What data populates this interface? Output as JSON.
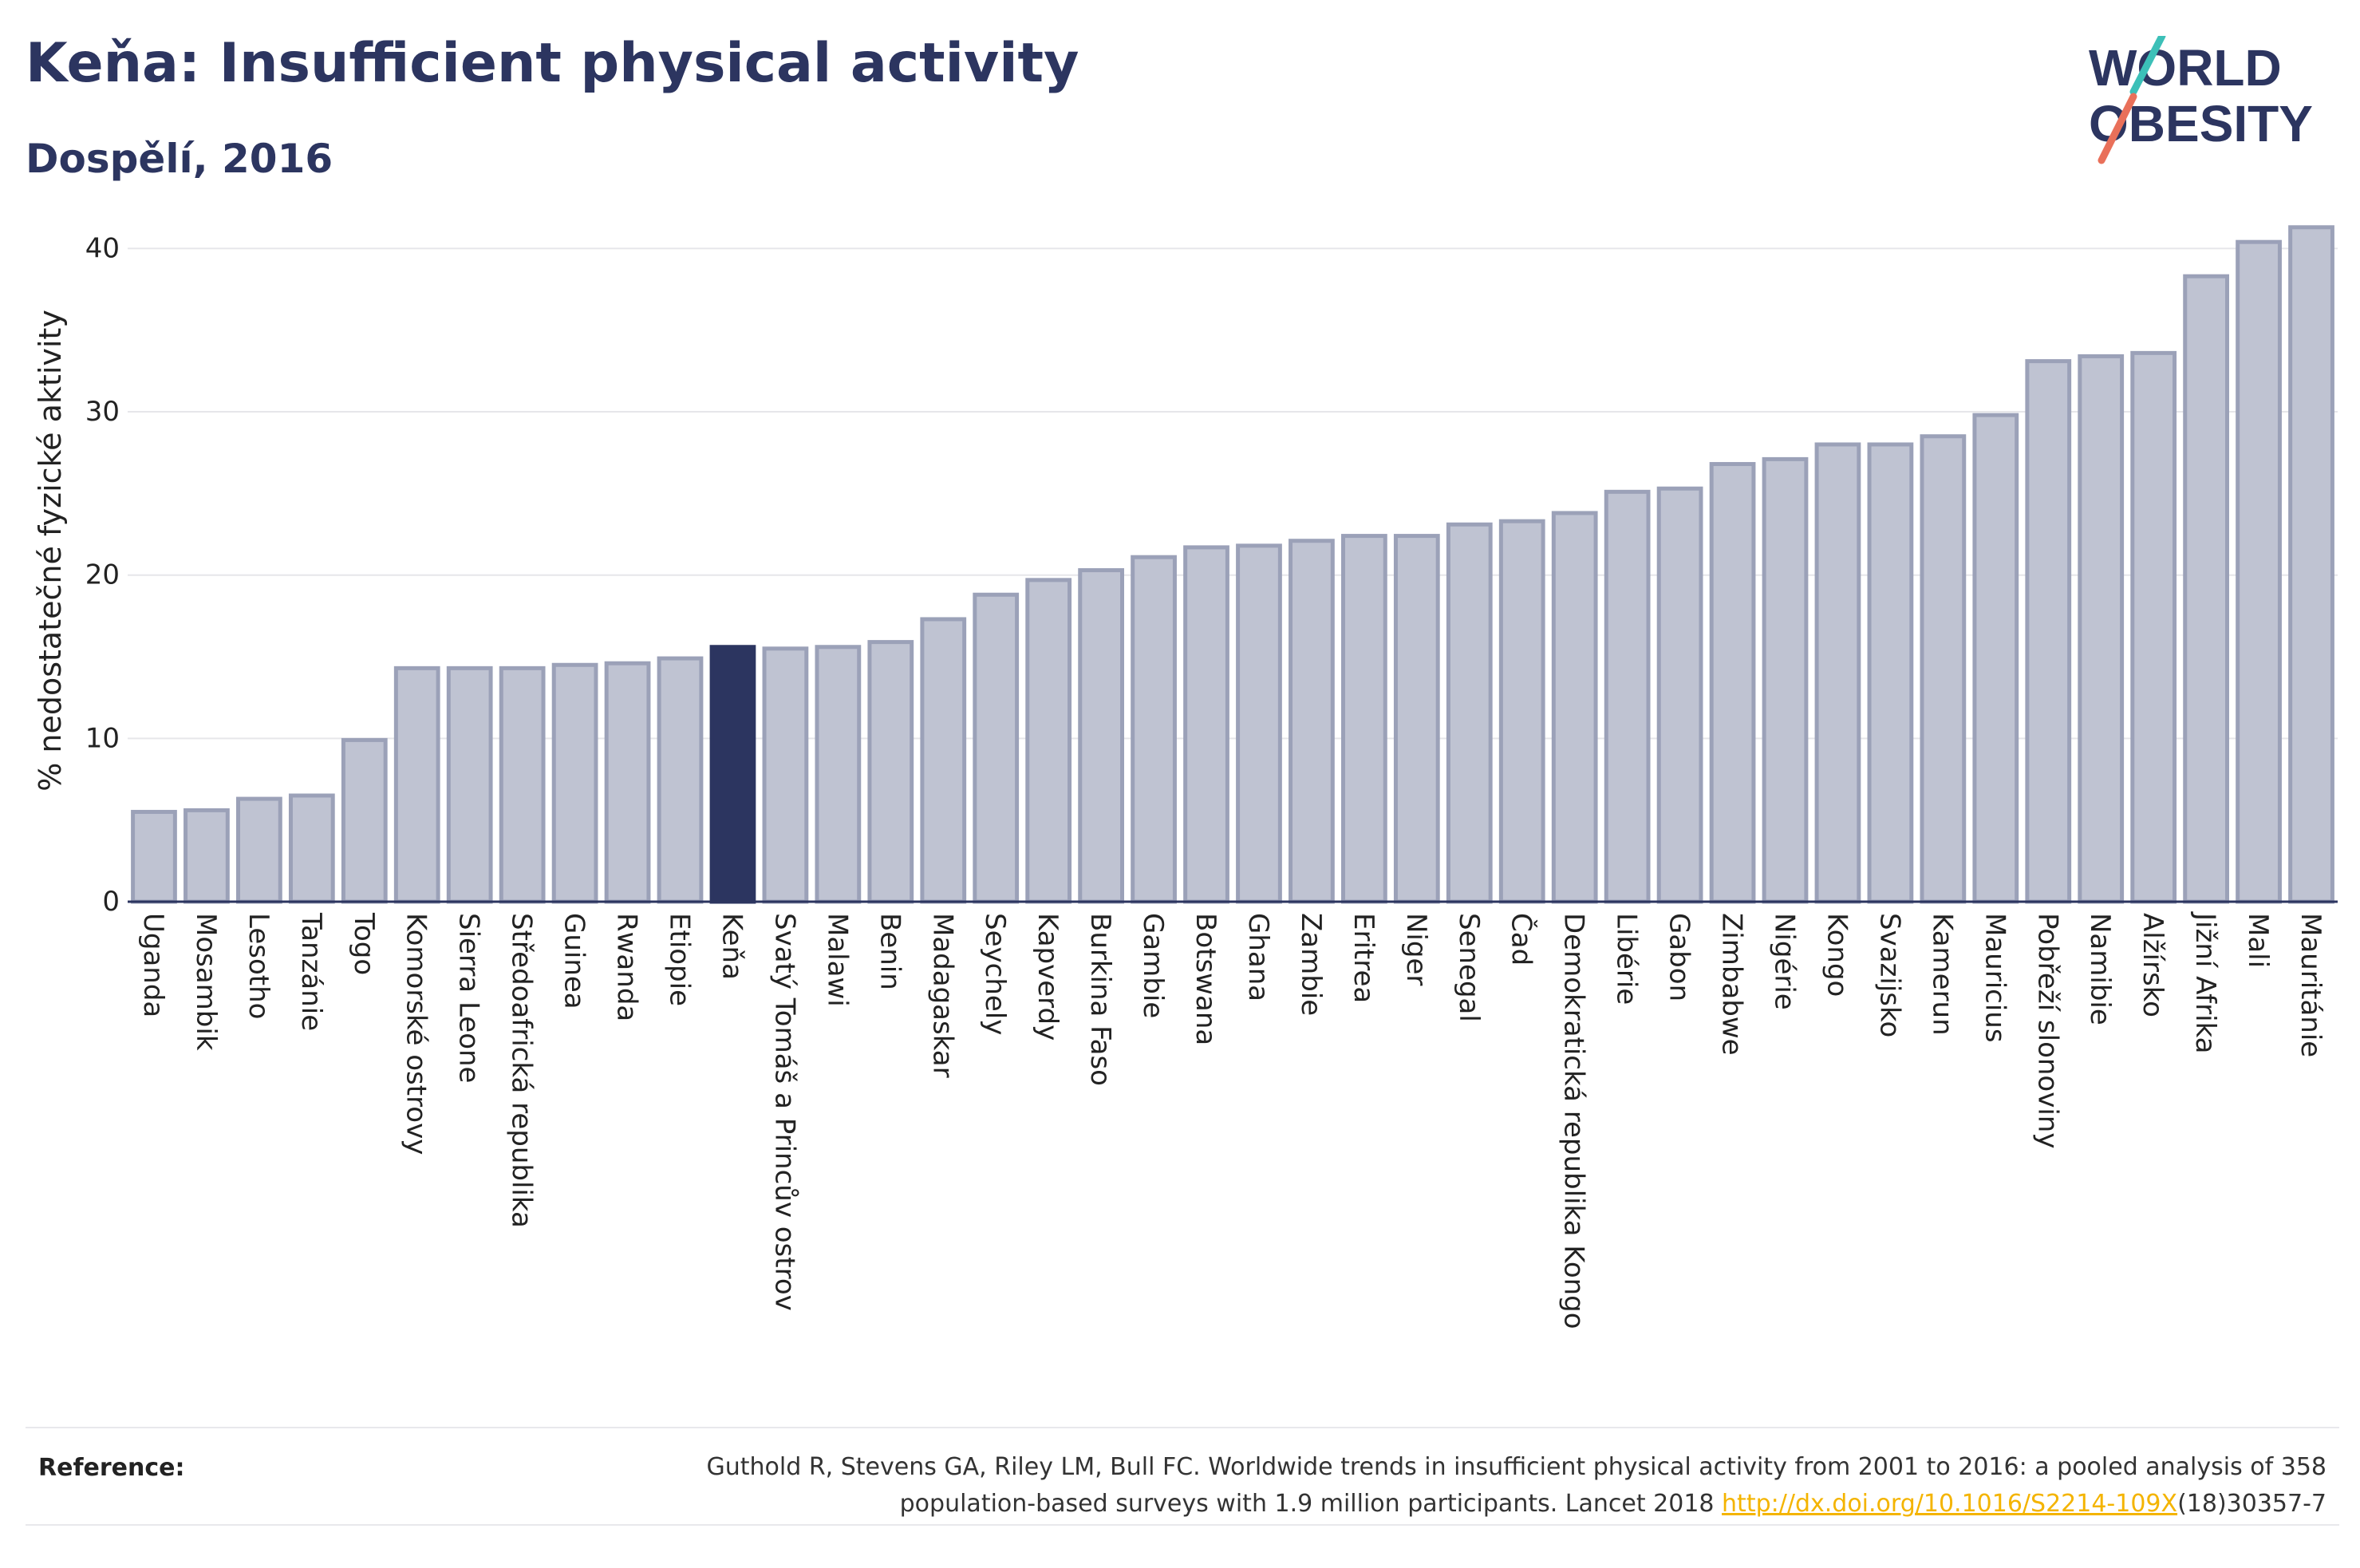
{
  "header": {
    "title": "Keňa: Insufficient physical activity",
    "subtitle": "Dospělí, 2016"
  },
  "logo": {
    "line1": "WORLD",
    "line2": "OBESITY"
  },
  "colors": {
    "bar_default": "#bfc3d2",
    "bar_default_stroke": "#9ba1b8",
    "bar_highlight": "#2c3560",
    "title": "#2c3560",
    "logo_teal": "#3cc0b8",
    "logo_coral": "#e9705a",
    "link": "#f4b400"
  },
  "chart_data": {
    "type": "bar",
    "ylabel": "% nedostatečné fyzické aktivity",
    "ylim": [
      0,
      43
    ],
    "yticks": [
      0,
      10,
      20,
      30,
      40
    ],
    "grid": true,
    "highlight": "Keňa",
    "categories": [
      "Uganda",
      "Mosambik",
      "Lesotho",
      "Tanzánie",
      "Togo",
      "Komorské ostrovy",
      "Sierra Leone",
      "Středoafrická republika",
      "Guinea",
      "Rwanda",
      "Etiopie",
      "Keňa",
      "Svatý Tomáš a Princův ostrov",
      "Malawi",
      "Benin",
      "Madagaskar",
      "Seychely",
      "Kapverdy",
      "Burkina Faso",
      "Gambie",
      "Botswana",
      "Ghana",
      "Zambie",
      "Eritrea",
      "Niger",
      "Senegal",
      "Čad",
      "Demokratická republika Kongo",
      "Libérie",
      "Gabon",
      "Zimbabwe",
      "Nigérie",
      "Kongo",
      "Svazijsko",
      "Kamerun",
      "Mauricius",
      "Pobřeží slonoviny",
      "Namibie",
      "Alžírsko",
      "Jižní Afrika",
      "Mali",
      "Mauritánie"
    ],
    "values": [
      5.5,
      5.6,
      6.3,
      6.5,
      9.9,
      14.3,
      14.3,
      14.3,
      14.5,
      14.6,
      14.9,
      15.6,
      15.5,
      15.6,
      15.9,
      17.3,
      18.8,
      19.7,
      20.3,
      21.1,
      21.7,
      21.8,
      22.1,
      22.4,
      22.4,
      23.1,
      23.3,
      23.8,
      25.1,
      25.3,
      26.8,
      27.1,
      28.0,
      28.0,
      28.5,
      29.8,
      33.1,
      33.4,
      33.6,
      38.3,
      40.4,
      41.3
    ]
  },
  "footer": {
    "ref_label": "Reference:",
    "ref_line1": "Guthold R, Stevens GA, Riley LM, Bull FC. Worldwide trends in insufficient physical activity from 2001 to 2016: a pooled analysis of 358",
    "ref_line2_pre": "population-based surveys with 1.9 million participants. Lancet 2018 ",
    "ref_link": "http://dx.doi.org/10.1016/S2214-109X",
    "ref_line2_post": "(18)30357-7"
  }
}
